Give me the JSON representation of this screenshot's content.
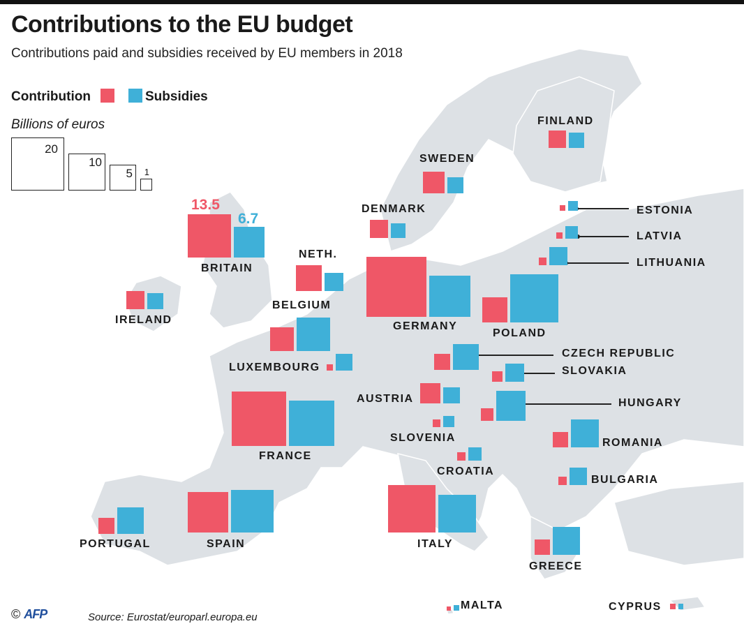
{
  "header": {
    "title": "Contributions to the EU budget",
    "subtitle": "Contributions paid and subsidies received by EU members in 2018"
  },
  "legend": {
    "contribution_label": "Contribution",
    "subsidies_label": "Subsidies",
    "unit_label": "Billions of euros",
    "size_keys": [
      "20",
      "10",
      "5",
      "1"
    ]
  },
  "colors": {
    "contribution": "#ef5767",
    "subsidies": "#3fb0d8",
    "land": "#dde1e5"
  },
  "highlight_values": {
    "britain_contribution": "13.5",
    "britain_subsidies": "6.7"
  },
  "countries": [
    {
      "name": "FINLAND",
      "contribution": 2.2,
      "subsidies": 1.7
    },
    {
      "name": "SWEDEN",
      "contribution": 3.4,
      "subsidies": 1.8
    },
    {
      "name": "DENMARK",
      "contribution": 2.4,
      "subsidies": 1.5
    },
    {
      "name": "ESTONIA",
      "contribution": 0.2,
      "subsidies": 0.7
    },
    {
      "name": "LATVIA",
      "contribution": 0.3,
      "subsidies": 1.1
    },
    {
      "name": "LITHUANIA",
      "contribution": 0.4,
      "subsidies": 2.3
    },
    {
      "name": "BRITAIN",
      "contribution": 13.5,
      "subsidies": 6.7
    },
    {
      "name": "NETH.",
      "contribution": 4.8,
      "subsidies": 2.4
    },
    {
      "name": "IRELAND",
      "contribution": 2.3,
      "subsidies": 1.9
    },
    {
      "name": "BELGIUM",
      "contribution": 3.9,
      "subsidies": 8.1
    },
    {
      "name": "GERMANY",
      "contribution": 25.3,
      "subsidies": 12.1
    },
    {
      "name": "POLAND",
      "contribution": 4.5,
      "subsidies": 16.3
    },
    {
      "name": "LUXEMBOURG",
      "contribution": 0.3,
      "subsidies": 2.0
    },
    {
      "name": "CZECH REPUBLIC",
      "contribution": 1.8,
      "subsidies": 4.7
    },
    {
      "name": "SLOVAKIA",
      "contribution": 0.8,
      "subsidies": 2.4
    },
    {
      "name": "AUSTRIA",
      "contribution": 3.0,
      "subsidies": 1.9
    },
    {
      "name": "HUNGARY",
      "contribution": 1.1,
      "subsidies": 6.3
    },
    {
      "name": "SLOVENIA",
      "contribution": 0.4,
      "subsidies": 0.9
    },
    {
      "name": "ROMANIA",
      "contribution": 1.6,
      "subsidies": 5.6
    },
    {
      "name": "CROATIA",
      "contribution": 0.5,
      "subsidies": 1.2
    },
    {
      "name": "BULGARIA",
      "contribution": 0.5,
      "subsidies": 2.2
    },
    {
      "name": "FRANCE",
      "contribution": 21.0,
      "subsidies": 14.8
    },
    {
      "name": "PORTUGAL",
      "contribution": 1.8,
      "subsidies": 5.0
    },
    {
      "name": "SPAIN",
      "contribution": 11.7,
      "subsidies": 12.8
    },
    {
      "name": "ITALY",
      "contribution": 15.9,
      "subsidies": 10.1
    },
    {
      "name": "GREECE",
      "contribution": 1.6,
      "subsidies": 5.5
    },
    {
      "name": "MALTA",
      "contribution": 0.1,
      "subsidies": 0.2
    },
    {
      "name": "CYPRUS",
      "contribution": 0.2,
      "subsidies": 0.2
    }
  ],
  "footer": {
    "copyright": "©",
    "agency": "AFP",
    "source": "Source: Eurostat/europarl.europa.eu"
  }
}
